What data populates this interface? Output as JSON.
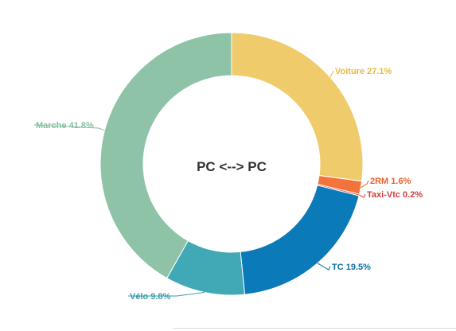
{
  "chart_data": {
    "type": "pie",
    "title": "PC <--> PC",
    "series": [
      {
        "slices": [
          {
            "label": "Voiture",
            "value": 27.1,
            "display": "Voiture 27.1%",
            "color": "#efcb6c"
          },
          {
            "label": "2RM",
            "value": 1.6,
            "display": "2RM 1.6%",
            "color": "#f4733b"
          },
          {
            "label": "Taxi-Vtc",
            "value": 0.2,
            "display": "Taxi-Vtc 0.2%",
            "color": "#e04646"
          },
          {
            "label": "TC",
            "value": 19.5,
            "display": "TC 19.5%",
            "color": "#0a7ab8"
          },
          {
            "label": "Vélo",
            "value": 9.8,
            "display": "Vélo 9.8%",
            "color": "#41a8b6"
          },
          {
            "label": "Marche",
            "value": 41.8,
            "display": "Marche 41.8%",
            "color": "#8fc3a8"
          }
        ]
      }
    ],
    "label_colors": {
      "Voiture": "#e6b83f",
      "2RM": "#e8602a",
      "Taxi-Vtc": "#d33c3c",
      "TC": "#0a6fa8",
      "Vélo": "#3a9db0",
      "Marche": "#86bfa0"
    }
  }
}
